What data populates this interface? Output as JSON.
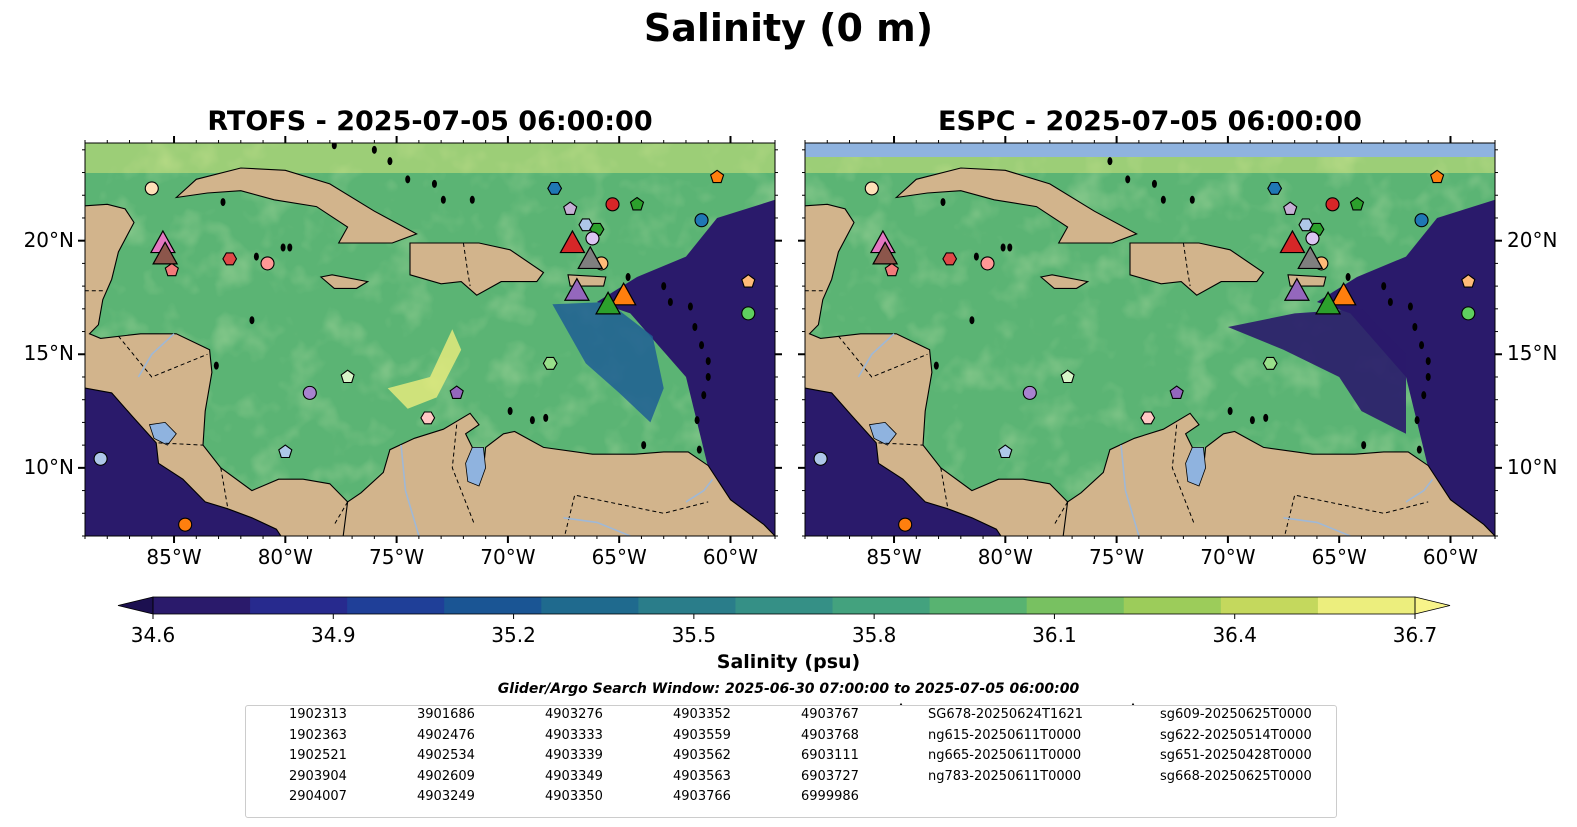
{
  "title": "Salinity (0 m)",
  "panels": [
    {
      "id": "rtofs",
      "title": "RTOFS - 2025-07-05 06:00:00"
    },
    {
      "id": "espc",
      "title": "ESPC - 2025-07-05 06:00:00"
    }
  ],
  "axes": {
    "lon_ticks": [
      "85°W",
      "80°W",
      "75°W",
      "70°W",
      "65°W",
      "60°W"
    ],
    "lon_values": [
      -85,
      -80,
      -75,
      -70,
      -65,
      -60
    ],
    "lat_ticks": [
      "20°N",
      "15°N",
      "10°N"
    ],
    "lat_values": [
      20,
      15,
      10
    ],
    "lon_range": [
      -89,
      -58
    ],
    "lat_range": [
      7,
      24.3
    ]
  },
  "colorbar": {
    "label": "Salinity (psu)",
    "ticks": [
      "34.6",
      "34.9",
      "35.2",
      "35.5",
      "35.8",
      "36.1",
      "36.4",
      "36.7"
    ],
    "tick_values": [
      34.6,
      34.9,
      35.2,
      35.5,
      35.8,
      36.1,
      36.4,
      36.7
    ],
    "range": [
      34.6,
      36.7
    ],
    "colormap": "haline",
    "colors": [
      "#2a1a6b",
      "#272a8e",
      "#1f3f98",
      "#1a5594",
      "#1f6a8e",
      "#2a7d8a",
      "#359086",
      "#43a27e",
      "#58b371",
      "#78c161",
      "#9ccc5a",
      "#c4d85d",
      "#ecee7d"
    ]
  },
  "search_window": "Glider/Argo Search Window: 2025-06-30 07:00:00 to 2025-07-05 06:00:00",
  "colors": {
    "land": "#d2b48c",
    "ocean_low": "#2a1a6b",
    "ocean_mid": "#5bb474",
    "ocean_high": "#ecee7d",
    "lakes": "#8fb3df",
    "espc_nodata": "#8fb3df"
  },
  "legend": {
    "argo": [
      {
        "id": "1902313",
        "marker": "circle",
        "color": "#1f77b4"
      },
      {
        "id": "1902363",
        "marker": "hexagon",
        "color": "#1f77b4"
      },
      {
        "id": "1902521",
        "marker": "pentagon",
        "color": "#1f77b4"
      },
      {
        "id": "2903904",
        "marker": "circle",
        "color": "#aec7e8"
      },
      {
        "id": "2904007",
        "marker": "hexagon",
        "color": "#aec7e8"
      },
      {
        "id": "3901686",
        "marker": "pentagon",
        "color": "#ff7f0e"
      },
      {
        "id": "4902476",
        "marker": "circle",
        "color": "#ff7f0e"
      },
      {
        "id": "4902534",
        "marker": "hexagon",
        "color": "#ffbb78"
      },
      {
        "id": "4902609",
        "marker": "pentagon",
        "color": "#ffbb78"
      },
      {
        "id": "4903249",
        "marker": "circle",
        "color": "#ffe0b8"
      },
      {
        "id": "4903276",
        "marker": "hexagon",
        "color": "#2ca02c"
      },
      {
        "id": "4903333",
        "marker": "pentagon",
        "color": "#2ca02c"
      },
      {
        "id": "4903339",
        "marker": "circle",
        "color": "#5fcf5f"
      },
      {
        "id": "4903349",
        "marker": "hexagon",
        "color": "#98df8a"
      },
      {
        "id": "4903350",
        "marker": "pentagon",
        "color": "#d8f5c8"
      },
      {
        "id": "4903352",
        "marker": "circle",
        "color": "#d62728"
      },
      {
        "id": "4903559",
        "marker": "hexagon",
        "color": "#e04848"
      },
      {
        "id": "4903562",
        "marker": "pentagon",
        "color": "#f27a7a"
      },
      {
        "id": "4903563",
        "marker": "circle",
        "color": "#ff9896"
      },
      {
        "id": "4903766",
        "marker": "hexagon",
        "color": "#ffc8c4"
      },
      {
        "id": "4903767",
        "marker": "pentagon",
        "color": "#9467bd"
      },
      {
        "id": "4903768",
        "marker": "circle",
        "color": "#a883cf"
      },
      {
        "id": "6903111",
        "marker": "hexagon",
        "color": "#b79be0"
      },
      {
        "id": "6903727",
        "marker": "pentagon",
        "color": "#c5b0d5"
      },
      {
        "id": "6999986",
        "marker": "circle",
        "color": "#dcc6f2"
      }
    ],
    "gliders": [
      {
        "id": "SG678-20250624T1621",
        "color": "#1f77b4"
      },
      {
        "id": "ng615-20250611T0000",
        "color": "#ff7f0e"
      },
      {
        "id": "ng665-20250611T0000",
        "color": "#2ca02c"
      },
      {
        "id": "ng783-20250611T0000",
        "color": "#d62728"
      },
      {
        "id": "sg609-20250625T0000",
        "color": "#9467bd"
      },
      {
        "id": "sg622-20250514T0000",
        "color": "#8c564b"
      },
      {
        "id": "sg651-20250428T0000",
        "color": "#e377c2"
      },
      {
        "id": "sg668-20250625T0000",
        "color": "#7f7f7f"
      }
    ]
  },
  "map_markers": {
    "argo": [
      {
        "lon": -86.0,
        "lat": 22.3,
        "marker": "circle",
        "color": "#ffe0b8"
      },
      {
        "lon": -67.9,
        "lat": 22.3,
        "marker": "hexagon",
        "color": "#1f77b4"
      },
      {
        "lon": -65.3,
        "lat": 21.6,
        "marker": "circle",
        "color": "#d62728"
      },
      {
        "lon": -64.2,
        "lat": 21.6,
        "marker": "pentagon",
        "color": "#2ca02c"
      },
      {
        "lon": -60.6,
        "lat": 22.8,
        "marker": "pentagon",
        "color": "#ff7f0e"
      },
      {
        "lon": -67.2,
        "lat": 21.4,
        "marker": "pentagon",
        "color": "#c5b0d5"
      },
      {
        "lon": -66.5,
        "lat": 20.7,
        "marker": "hexagon",
        "color": "#aec7e8"
      },
      {
        "lon": -66.0,
        "lat": 20.5,
        "marker": "hexagon",
        "color": "#2ca02c"
      },
      {
        "lon": -66.2,
        "lat": 20.1,
        "marker": "circle",
        "color": "#dcc6f2"
      },
      {
        "lon": -61.3,
        "lat": 20.9,
        "marker": "circle",
        "color": "#1f77b4"
      },
      {
        "lon": -82.5,
        "lat": 19.2,
        "marker": "hexagon",
        "color": "#e04848"
      },
      {
        "lon": -80.8,
        "lat": 19.0,
        "marker": "circle",
        "color": "#ff9896"
      },
      {
        "lon": -85.1,
        "lat": 18.7,
        "marker": "pentagon",
        "color": "#f27a7a"
      },
      {
        "lon": -65.8,
        "lat": 19.0,
        "marker": "circle",
        "color": "#ffbb78"
      },
      {
        "lon": -59.2,
        "lat": 18.2,
        "marker": "pentagon",
        "color": "#ffbb78"
      },
      {
        "lon": -59.2,
        "lat": 16.8,
        "marker": "circle",
        "color": "#5fcf5f"
      },
      {
        "lon": -68.1,
        "lat": 14.6,
        "marker": "hexagon",
        "color": "#98df8a"
      },
      {
        "lon": -77.2,
        "lat": 14.0,
        "marker": "pentagon",
        "color": "#d8f5c8"
      },
      {
        "lon": -78.9,
        "lat": 13.3,
        "marker": "circle",
        "color": "#a883cf"
      },
      {
        "lon": -72.3,
        "lat": 13.3,
        "marker": "pentagon",
        "color": "#9467bd"
      },
      {
        "lon": -73.6,
        "lat": 12.2,
        "marker": "hexagon",
        "color": "#ffc8c4"
      },
      {
        "lon": -80.0,
        "lat": 10.7,
        "marker": "pentagon",
        "color": "#aec7e8"
      },
      {
        "lon": -88.3,
        "lat": 10.4,
        "marker": "circle",
        "color": "#aec7e8"
      },
      {
        "lon": -84.5,
        "lat": 7.5,
        "marker": "circle",
        "color": "#ff7f0e"
      }
    ],
    "gliders": [
      {
        "lon": -85.5,
        "lat": 19.9,
        "color": "#e377c2"
      },
      {
        "lon": -85.4,
        "lat": 19.4,
        "color": "#8c564b"
      },
      {
        "lon": -67.1,
        "lat": 19.9,
        "color": "#d62728"
      },
      {
        "lon": -66.3,
        "lat": 19.2,
        "color": "#7f7f7f"
      },
      {
        "lon": -66.9,
        "lat": 17.8,
        "color": "#9467bd"
      },
      {
        "lon": -64.8,
        "lat": 17.6,
        "color": "#ff7f0e"
      },
      {
        "lon": -65.5,
        "lat": 17.2,
        "color": "#2ca02c"
      }
    ]
  }
}
